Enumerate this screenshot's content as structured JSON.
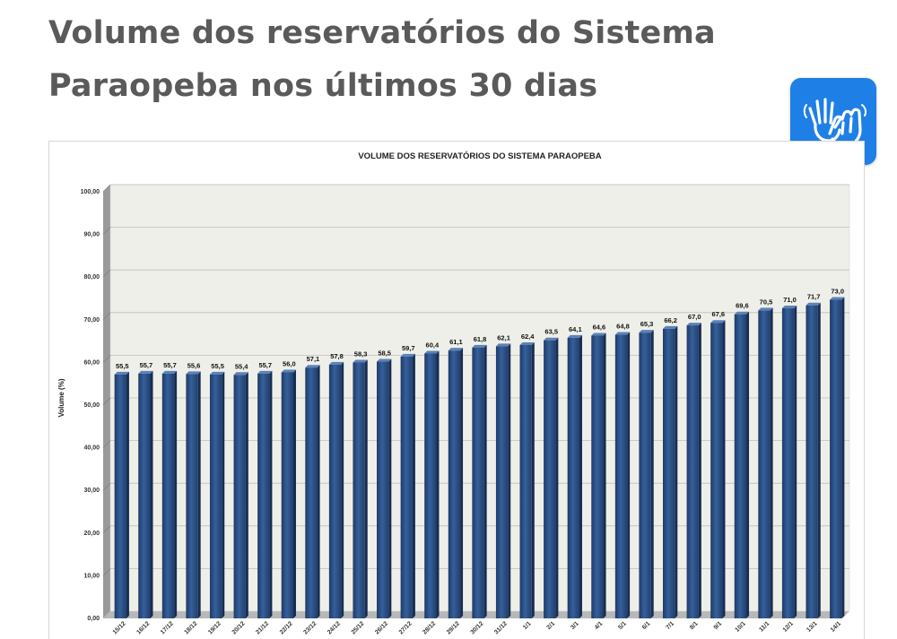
{
  "page": {
    "headline": "Volume dos reservatórios do Sistema Paraopeba nos últimos 30 dias"
  },
  "accessibility_button": {
    "icon": "sign-language-hands-icon",
    "color": "#1e7fe6"
  },
  "chart_data": {
    "type": "bar",
    "title": "VOLUME DOS RESERVATÓRIOS DO SISTEMA PARAOPEBA",
    "xlabel": "",
    "ylabel": "Volume (%)",
    "ylim": [
      0,
      100
    ],
    "yticks": [
      "0,00",
      "10,00",
      "20,00",
      "30,00",
      "40,00",
      "50,00",
      "60,00",
      "70,00",
      "80,00",
      "90,00",
      "100,00"
    ],
    "grid": true,
    "legend": "none",
    "bar_color": "#2e4f82",
    "categories": [
      "15/12",
      "16/12",
      "17/12",
      "18/12",
      "19/12",
      "20/12",
      "21/12",
      "22/12",
      "23/12",
      "24/12",
      "25/12",
      "26/12",
      "27/12",
      "28/12",
      "29/12",
      "30/12",
      "31/12",
      "1/1",
      "2/1",
      "3/1",
      "4/1",
      "5/1",
      "6/1",
      "7/1",
      "8/1",
      "9/1",
      "10/1",
      "11/1",
      "12/1",
      "13/1",
      "14/1"
    ],
    "values": [
      55.5,
      55.7,
      55.7,
      55.6,
      55.5,
      55.4,
      55.7,
      56.0,
      57.1,
      57.8,
      58.3,
      58.5,
      59.7,
      60.4,
      61.1,
      61.8,
      62.1,
      62.4,
      63.5,
      64.1,
      64.6,
      64.8,
      65.3,
      66.2,
      67.0,
      67.6,
      69.6,
      70.5,
      71.0,
      71.7,
      73.0
    ],
    "data_labels": [
      "55,5",
      "55,7",
      "55,7",
      "55,6",
      "55,5",
      "55,4",
      "55,7",
      "56,0",
      "57,1",
      "57,8",
      "58,3",
      "58,5",
      "59,7",
      "60,4",
      "61,1",
      "61,8",
      "62,1",
      "62,4",
      "63,5",
      "64,1",
      "64,6",
      "64,8",
      "65,3",
      "66,2",
      "67,0",
      "67,6",
      "69,6",
      "70,5",
      "71,0",
      "71,7",
      "73,0"
    ]
  }
}
